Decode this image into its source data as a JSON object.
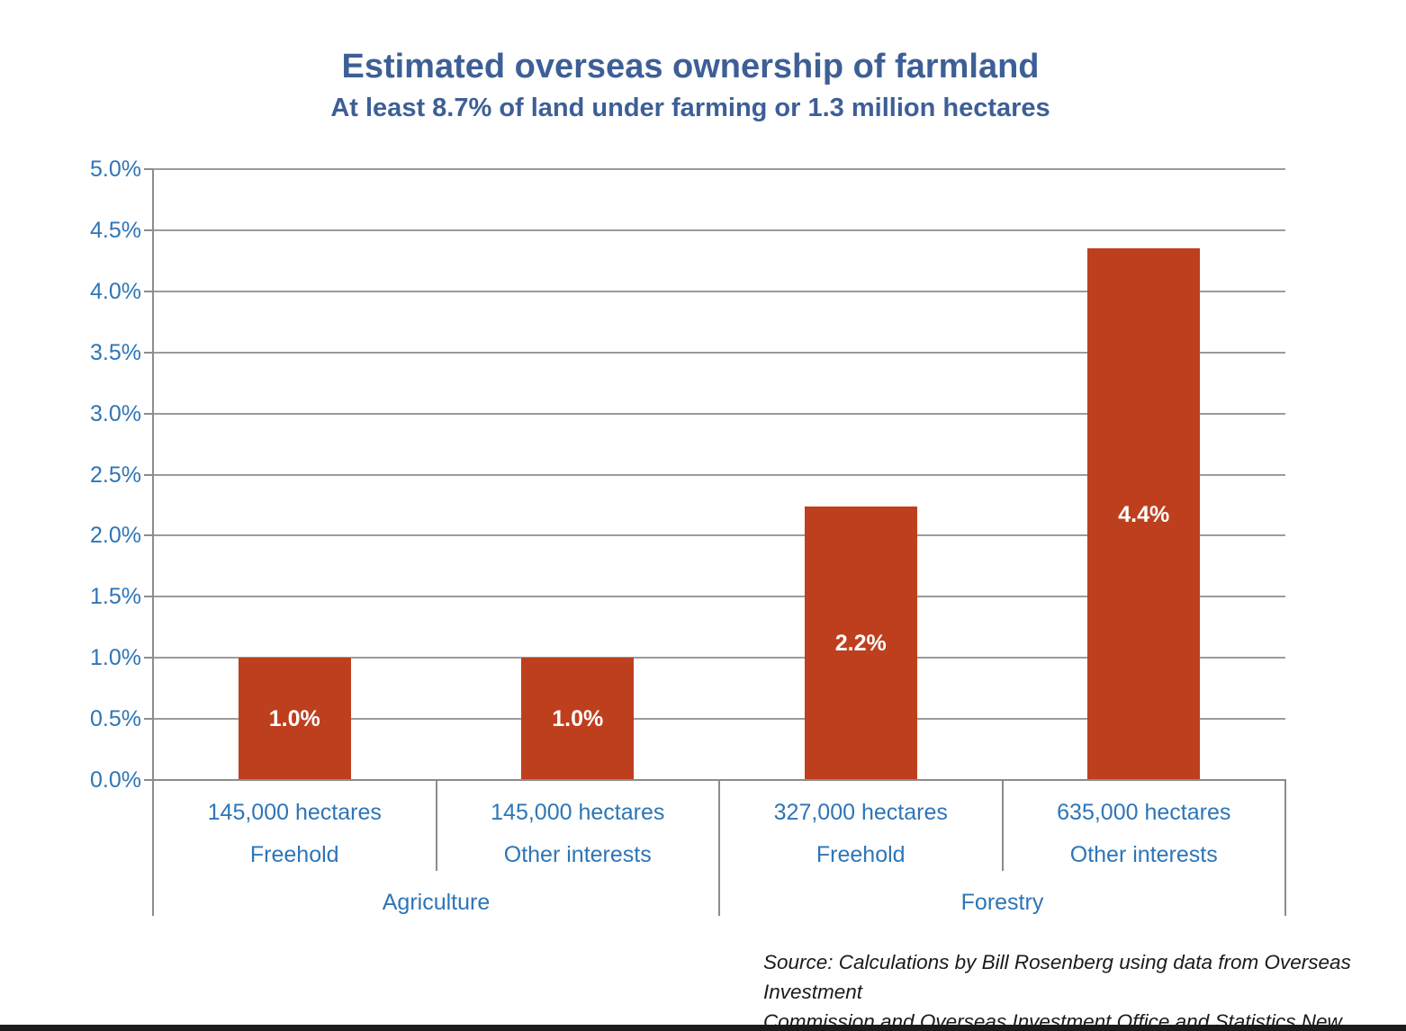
{
  "title": "Estimated overseas ownership of farmland",
  "subtitle": "At least 8.7% of land under farming or 1.3 million hectares",
  "source": {
    "line1": "Source: Calculations by Bill Rosenberg using data from Overseas Investment",
    "line2": "Commission and Overseas Investment Office and Statistics New Zealand"
  },
  "colors": {
    "bar": "#BE3F1E",
    "heading_blue": "#3D5F96",
    "axis_label_blue": "#2E75B6",
    "gridline_gray": "#9B9B9B",
    "axis_gray": "#8C8C8C",
    "bottom_border": "#1B1B1B",
    "bar_label_white": "#FFFFFF"
  },
  "chart_data": {
    "type": "bar",
    "title": "Estimated overseas ownership of farmland",
    "subtitle": "At least 8.7% of land under farming or 1.3 million hectares",
    "xlabel": "",
    "ylabel": "",
    "ylim": [
      0,
      5
    ],
    "y_tick_step": 0.5,
    "grid": true,
    "legend": "none",
    "y_ticks": [
      {
        "value": 0.0,
        "label": "0.0%"
      },
      {
        "value": 0.5,
        "label": "0.5%"
      },
      {
        "value": 1.0,
        "label": "1.0%"
      },
      {
        "value": 1.5,
        "label": "1.5%"
      },
      {
        "value": 2.0,
        "label": "2.0%"
      },
      {
        "value": 2.5,
        "label": "2.5%"
      },
      {
        "value": 3.0,
        "label": "3.0%"
      },
      {
        "value": 3.5,
        "label": "3.5%"
      },
      {
        "value": 4.0,
        "label": "4.0%"
      },
      {
        "value": 4.5,
        "label": "4.5%"
      },
      {
        "value": 5.0,
        "label": "5.0%"
      }
    ],
    "categories": [
      {
        "hectares": "145,000 hectares",
        "tenure": "Freehold",
        "group": "Agriculture",
        "value": 1.0,
        "data_label": "1.0%"
      },
      {
        "hectares": "145,000 hectares",
        "tenure": "Other interests",
        "group": "Agriculture",
        "value": 1.0,
        "data_label": "1.0%"
      },
      {
        "hectares": "327,000 hectares",
        "tenure": "Freehold",
        "group": "Forestry",
        "value": 2.24,
        "data_label": "2.2%"
      },
      {
        "hectares": "635,000 hectares",
        "tenure": "Other interests",
        "group": "Forestry",
        "value": 4.35,
        "data_label": "4.4%"
      }
    ],
    "groups": [
      {
        "label": "Agriculture",
        "start": 0,
        "end": 2
      },
      {
        "label": "Forestry",
        "start": 2,
        "end": 4
      }
    ]
  }
}
